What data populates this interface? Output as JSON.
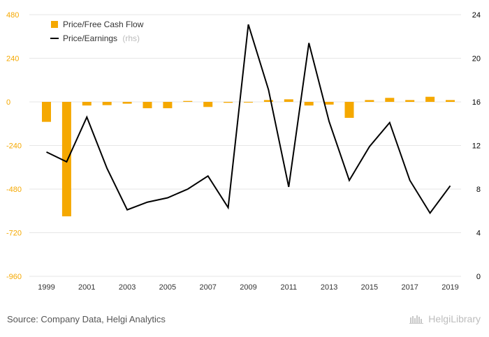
{
  "chart_data": {
    "type": "bar",
    "x": [
      1999,
      2000,
      2001,
      2002,
      2003,
      2004,
      2005,
      2006,
      2007,
      2008,
      2009,
      2010,
      2011,
      2012,
      2013,
      2014,
      2015,
      2016,
      2017,
      2018,
      2019
    ],
    "x_tick_labels": [
      "1999",
      "2001",
      "2003",
      "2005",
      "2007",
      "2009",
      "2011",
      "2013",
      "2015",
      "2017",
      "2019"
    ],
    "y_left": {
      "range": [
        -960,
        480
      ],
      "ticks": [
        480,
        240,
        0,
        -240,
        -480,
        -720,
        -960
      ]
    },
    "y_right": {
      "range": [
        0,
        24
      ],
      "ticks": [
        24,
        20,
        16,
        12,
        8,
        4,
        0
      ]
    },
    "grid": "horizontal",
    "legend_position": "top-left",
    "series": [
      {
        "name": "Price/Free Cash Flow",
        "kind": "bar",
        "axis": "left",
        "color": "#f5a800",
        "values": [
          -110,
          -630,
          -20,
          -18,
          -10,
          -35,
          -35,
          5,
          -28,
          -5,
          -3,
          10,
          14,
          -20,
          -15,
          -88,
          10,
          22,
          10,
          28,
          10
        ]
      },
      {
        "name": "Price/Earnings",
        "name_suffix": "(rhs)",
        "kind": "line",
        "axis": "right",
        "color": "#000000",
        "values": [
          11.4,
          10.5,
          14.6,
          9.9,
          6.1,
          6.8,
          7.2,
          8.0,
          9.2,
          6.3,
          23.1,
          17.1,
          8.2,
          21.4,
          14.2,
          8.8,
          11.9,
          14.1,
          8.8,
          5.8,
          8.3
        ]
      }
    ]
  },
  "footer": {
    "source": "Source: Company Data, Helgi Analytics",
    "logo_text": "HelgiLibrary"
  },
  "colors": {
    "left_axis": "#f5a800",
    "right_axis": "#000000",
    "grid": "#e6e6e6",
    "x_ticks": "#333333"
  }
}
